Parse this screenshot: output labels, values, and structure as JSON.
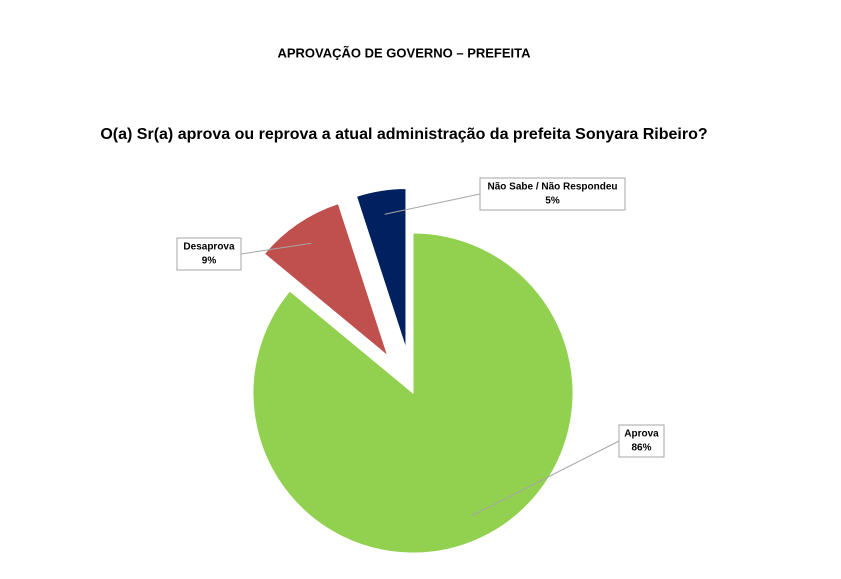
{
  "chart_data": {
    "type": "pie",
    "title": "APROVAÇÃO DE GOVERNO – PREFEITA",
    "subtitle": "O(a) Sr(a) aprova ou reprova a atual administração da prefeita Sonyara Ribeiro?",
    "categories": [
      "Aprova",
      "Desaprova",
      "Não Sabe / Não Respondeu"
    ],
    "values": [
      86,
      9,
      5
    ],
    "value_labels": [
      "86%",
      "9%",
      "5%"
    ],
    "colors": [
      "#92d050",
      "#c0504d",
      "#002060"
    ]
  }
}
